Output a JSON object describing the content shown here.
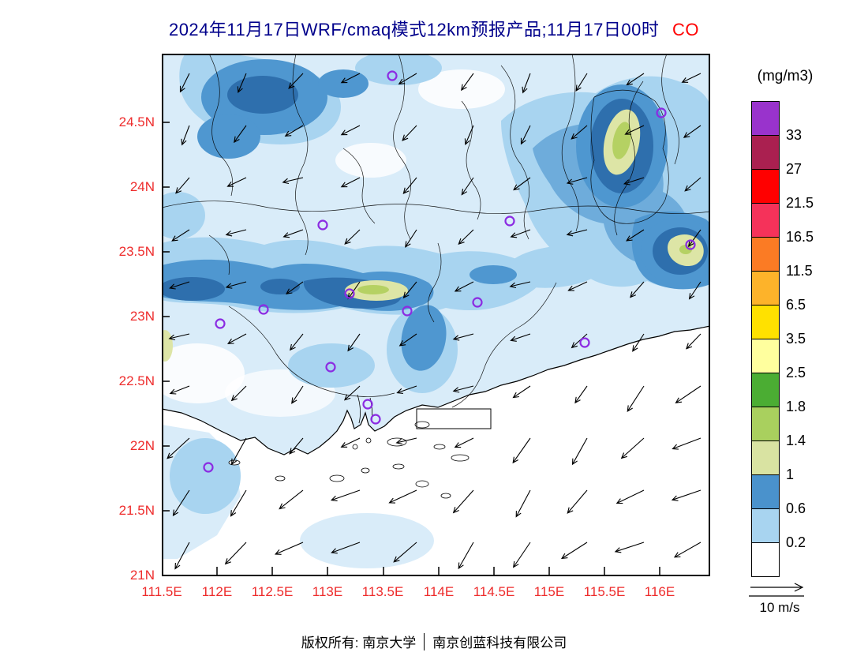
{
  "title": {
    "text": "2024年11月17日WRF/cmaq模式12km预报产品;11月17日00时",
    "species": "CO"
  },
  "colors": {
    "title_text": "#00008b",
    "species_text": "#ff0000",
    "axis_labels": "#ee2c2c",
    "map_fill_pale_blue": "#d9ecf9",
    "map_fill_light_blue": "#a8d4f0",
    "map_fill_blue": "#4f97d0",
    "map_fill_dark_blue": "#2e6fad",
    "map_fill_khaki": "#dde5a6",
    "map_fill_yellow_green": "#b5d163",
    "station_marker": "#8b2be2"
  },
  "axes": {
    "lat_labels": [
      "24.5N",
      "24N",
      "23.5N",
      "23N",
      "22.5N",
      "22N",
      "21.5N",
      "21N"
    ],
    "lon_labels": [
      "111.5E",
      "112E",
      "112.5E",
      "113E",
      "113.5E",
      "114E",
      "114.5E",
      "115E",
      "115.5E",
      "116E"
    ]
  },
  "colorbar": {
    "unit": "(mg/m3)",
    "tick_labels": [
      "33",
      "27",
      "21.5",
      "16.5",
      "11.5",
      "6.5",
      "3.5",
      "2.5",
      "1.8",
      "1.4",
      "1",
      "0.6",
      "0.2"
    ],
    "colors": [
      "#9933cc",
      "#aa2050",
      "#ff0000",
      "#f5325a",
      "#fb7b24",
      "#fdb32a",
      "#ffe100",
      "#ffff9e",
      "#4bad33",
      "#a9d05e",
      "#d9e3a2",
      "#4a92cc",
      "#a8d4f0",
      "#ffffff"
    ]
  },
  "wind_legend": {
    "label": "10 m/s"
  },
  "footer": {
    "left": "版权所有: 南京大学",
    "right": "南京创蓝科技有限公司"
  },
  "chart_data": {
    "type": "heatmap",
    "title": "2024年11月17日WRF/cmaq模式12km预报产品;11月17日00时 CO",
    "variable": "CO",
    "unit": "mg/m3",
    "model": "WRF/cmaq 12km forecast product",
    "valid_time": "2024-11-17 00时",
    "x_ticks_lon_E": [
      111.5,
      112,
      112.5,
      113,
      113.5,
      114,
      114.5,
      115,
      115.5,
      116
    ],
    "y_ticks_lat_N": [
      21,
      21.5,
      22,
      22.5,
      23,
      23.5,
      24,
      24.5
    ],
    "contour_levels": [
      0.2,
      0.6,
      1,
      1.4,
      1.8,
      2.5,
      3.5,
      6.5,
      11.5,
      16.5,
      21.5,
      27,
      33
    ],
    "palette_low_to_high": [
      "#ffffff",
      "#a8d4f0",
      "#4a92cc",
      "#d9e3a2",
      "#a9d05e",
      "#4bad33",
      "#ffff9e",
      "#ffe100",
      "#fdb32a",
      "#fb7b24",
      "#f5325a",
      "#ff0000",
      "#aa2050",
      "#9933cc"
    ],
    "legend_position": "right",
    "wind_vector_scale_m_s": 10,
    "observed_field_summary": "CO mostly 0.2-1 mg/m3 over land with an east-west band of 0.6-1 near 23-23.5N; local maxima of 1-1.8 mg/m3 near 113.4E/23.2N, 115.65E/24.25N and 116.1E/23.5N; below 0.2 over the sea in the southeast; wind vectors indicate northeasterly flow turning southwestward offshore"
  }
}
